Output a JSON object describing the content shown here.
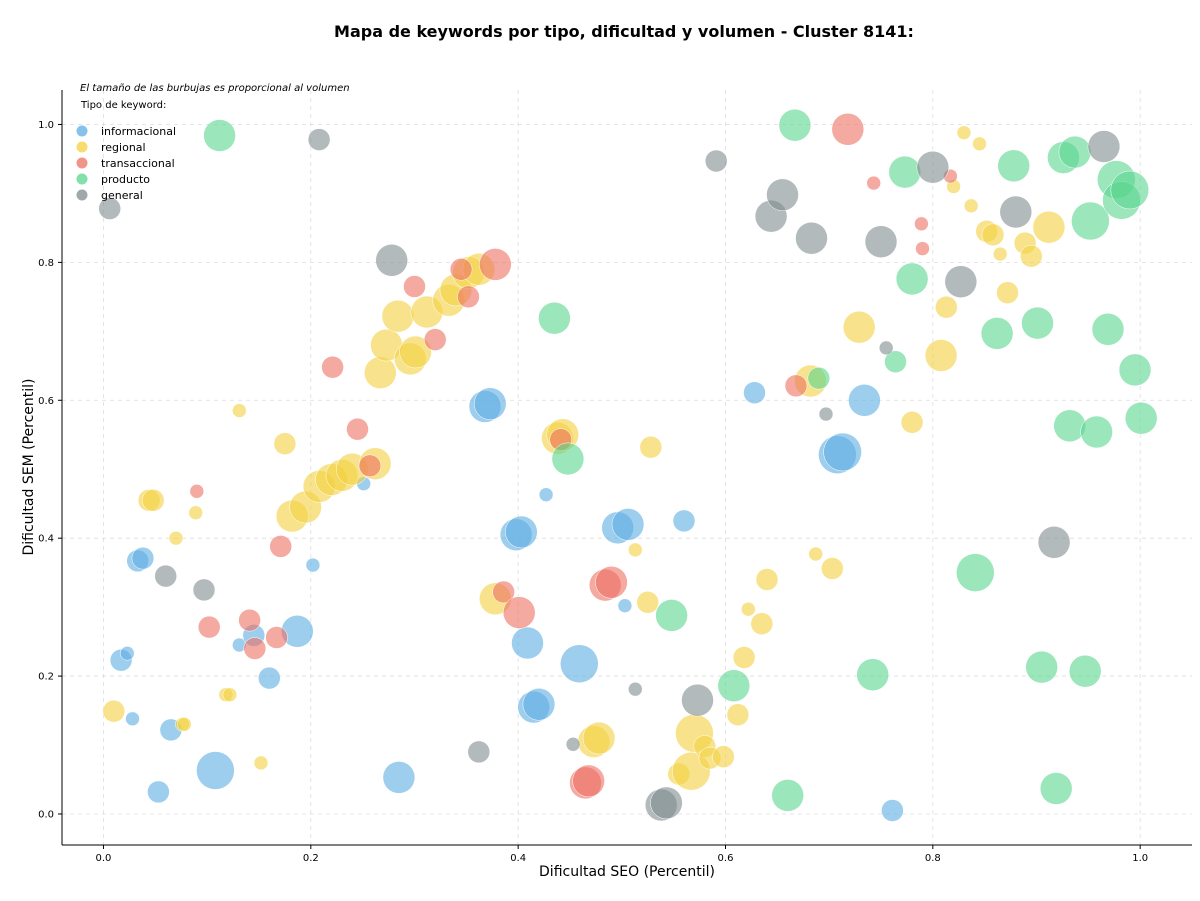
{
  "chart_data": {
    "type": "scatter",
    "title": "Mapa de keywords por tipo, dificultad y volumen - Cluster 8141:",
    "xlabel": "Dificultad SEO (Percentil)",
    "ylabel": "Dificultad SEM (Percentil)",
    "xlim": [
      -0.04,
      1.05
    ],
    "ylim": [
      -0.045,
      1.05
    ],
    "x_ticks": [
      "0.0",
      "0.2",
      "0.4",
      "0.6",
      "0.8",
      "1.0"
    ],
    "y_ticks": [
      "0.0",
      "0.2",
      "0.4",
      "0.6",
      "0.8",
      "1.0"
    ],
    "grid": true,
    "legend_position": "top-left",
    "annotation": "El tamaño de las burbujas es proporcional al volumen",
    "legend_title": "Tipo de keyword:",
    "series": [
      {
        "name": "informacional",
        "color": "#5dade2",
        "points": [
          [
            0.017,
            0.223,
            2
          ],
          [
            0.023,
            0.233,
            1
          ],
          [
            0.028,
            0.138,
            1
          ],
          [
            0.033,
            0.367,
            2
          ],
          [
            0.038,
            0.371,
            2
          ],
          [
            0.053,
            0.032,
            2
          ],
          [
            0.065,
            0.122,
            2
          ],
          [
            0.108,
            0.063,
            4
          ],
          [
            0.131,
            0.245,
            1
          ],
          [
            0.145,
            0.259,
            2
          ],
          [
            0.16,
            0.197,
            2
          ],
          [
            0.187,
            0.265,
            3
          ],
          [
            0.202,
            0.361,
            1
          ],
          [
            0.251,
            0.479,
            1
          ],
          [
            0.285,
            0.053,
            3
          ],
          [
            0.368,
            0.591,
            3
          ],
          [
            0.373,
            0.595,
            3
          ],
          [
            0.398,
            0.405,
            3
          ],
          [
            0.403,
            0.409,
            3
          ],
          [
            0.409,
            0.248,
            3
          ],
          [
            0.415,
            0.155,
            3
          ],
          [
            0.42,
            0.159,
            3
          ],
          [
            0.427,
            0.463,
            1
          ],
          [
            0.459,
            0.218,
            4
          ],
          [
            0.496,
            0.415,
            3
          ],
          [
            0.506,
            0.42,
            3
          ],
          [
            0.503,
            0.302,
            1
          ],
          [
            0.56,
            0.425,
            2
          ],
          [
            0.628,
            0.611,
            2
          ],
          [
            0.708,
            0.521,
            4
          ],
          [
            0.713,
            0.525,
            4
          ],
          [
            0.734,
            0.6,
            3
          ],
          [
            0.761,
            0.005,
            2
          ]
        ]
      },
      {
        "name": "regional",
        "color": "#f4d03f",
        "points": [
          [
            0.01,
            0.149,
            2
          ],
          [
            0.044,
            0.455,
            2
          ],
          [
            0.048,
            0.455,
            2
          ],
          [
            0.07,
            0.4,
            1
          ],
          [
            0.076,
            0.13,
            1
          ],
          [
            0.078,
            0.13,
            1
          ],
          [
            0.089,
            0.437,
            1
          ],
          [
            0.118,
            0.173,
            1
          ],
          [
            0.122,
            0.173,
            1
          ],
          [
            0.131,
            0.585,
            1
          ],
          [
            0.152,
            0.074,
            1
          ],
          [
            0.175,
            0.537,
            2
          ],
          [
            0.182,
            0.432,
            3
          ],
          [
            0.195,
            0.445,
            3
          ],
          [
            0.208,
            0.475,
            3
          ],
          [
            0.22,
            0.485,
            3
          ],
          [
            0.23,
            0.491,
            3
          ],
          [
            0.24,
            0.5,
            3
          ],
          [
            0.262,
            0.508,
            3
          ],
          [
            0.267,
            0.64,
            3
          ],
          [
            0.273,
            0.68,
            3
          ],
          [
            0.284,
            0.722,
            3
          ],
          [
            0.296,
            0.66,
            3
          ],
          [
            0.301,
            0.67,
            3
          ],
          [
            0.312,
            0.728,
            3
          ],
          [
            0.333,
            0.745,
            3
          ],
          [
            0.34,
            0.76,
            3
          ],
          [
            0.352,
            0.785,
            3
          ],
          [
            0.362,
            0.79,
            3
          ],
          [
            0.378,
            0.312,
            3
          ],
          [
            0.438,
            0.545,
            3
          ],
          [
            0.443,
            0.55,
            3
          ],
          [
            0.473,
            0.105,
            3
          ],
          [
            0.478,
            0.11,
            3
          ],
          [
            0.513,
            0.383,
            1
          ],
          [
            0.525,
            0.307,
            2
          ],
          [
            0.528,
            0.532,
            2
          ],
          [
            0.555,
            0.058,
            2
          ],
          [
            0.567,
            0.062,
            4
          ],
          [
            0.57,
            0.117,
            4
          ],
          [
            0.58,
            0.098,
            2
          ],
          [
            0.585,
            0.081,
            2
          ],
          [
            0.598,
            0.083,
            2
          ],
          [
            0.612,
            0.144,
            2
          ],
          [
            0.618,
            0.227,
            2
          ],
          [
            0.622,
            0.297,
            1
          ],
          [
            0.635,
            0.276,
            2
          ],
          [
            0.64,
            0.34,
            2
          ],
          [
            0.682,
            0.628,
            3
          ],
          [
            0.687,
            0.377,
            1
          ],
          [
            0.703,
            0.356,
            2
          ],
          [
            0.729,
            0.706,
            3
          ],
          [
            0.78,
            0.568,
            2
          ],
          [
            0.808,
            0.665,
            3
          ],
          [
            0.813,
            0.735,
            2
          ],
          [
            0.82,
            0.91,
            1
          ],
          [
            0.83,
            0.988,
            1
          ],
          [
            0.837,
            0.882,
            1
          ],
          [
            0.845,
            0.972,
            1
          ],
          [
            0.852,
            0.845,
            2
          ],
          [
            0.858,
            0.84,
            2
          ],
          [
            0.865,
            0.812,
            1
          ],
          [
            0.872,
            0.756,
            2
          ],
          [
            0.889,
            0.828,
            2
          ],
          [
            0.895,
            0.809,
            2
          ],
          [
            0.912,
            0.851,
            3
          ]
        ]
      },
      {
        "name": "transaccional",
        "color": "#ec7063",
        "points": [
          [
            0.09,
            0.468,
            1
          ],
          [
            0.102,
            0.271,
            2
          ],
          [
            0.141,
            0.281,
            2
          ],
          [
            0.146,
            0.24,
            2
          ],
          [
            0.167,
            0.256,
            2
          ],
          [
            0.171,
            0.388,
            2
          ],
          [
            0.221,
            0.648,
            2
          ],
          [
            0.245,
            0.558,
            2
          ],
          [
            0.257,
            0.505,
            2
          ],
          [
            0.3,
            0.765,
            2
          ],
          [
            0.32,
            0.688,
            2
          ],
          [
            0.345,
            0.79,
            2
          ],
          [
            0.352,
            0.75,
            2
          ],
          [
            0.378,
            0.797,
            3
          ],
          [
            0.386,
            0.322,
            2
          ],
          [
            0.401,
            0.292,
            3
          ],
          [
            0.441,
            0.543,
            2
          ],
          [
            0.465,
            0.045,
            3
          ],
          [
            0.468,
            0.048,
            3
          ],
          [
            0.484,
            0.332,
            3
          ],
          [
            0.49,
            0.336,
            3
          ],
          [
            0.668,
            0.621,
            2
          ],
          [
            0.718,
            0.993,
            3
          ],
          [
            0.743,
            0.915,
            1
          ],
          [
            0.789,
            0.856,
            1
          ],
          [
            0.79,
            0.82,
            1
          ],
          [
            0.817,
            0.925,
            1
          ]
        ]
      },
      {
        "name": "producto",
        "color": "#58d68d",
        "points": [
          [
            0.112,
            0.984,
            3
          ],
          [
            0.435,
            0.719,
            3
          ],
          [
            0.448,
            0.515,
            3
          ],
          [
            0.548,
            0.288,
            3
          ],
          [
            0.608,
            0.186,
            3
          ],
          [
            0.66,
            0.027,
            3
          ],
          [
            0.667,
            0.999,
            3
          ],
          [
            0.69,
            0.632,
            2
          ],
          [
            0.742,
            0.202,
            3
          ],
          [
            0.764,
            0.656,
            2
          ],
          [
            0.773,
            0.931,
            3
          ],
          [
            0.78,
            0.776,
            3
          ],
          [
            0.841,
            0.35,
            4
          ],
          [
            0.862,
            0.697,
            3
          ],
          [
            0.878,
            0.94,
            3
          ],
          [
            0.901,
            0.712,
            3
          ],
          [
            0.905,
            0.213,
            3
          ],
          [
            0.919,
            0.037,
            3
          ],
          [
            0.926,
            0.952,
            3
          ],
          [
            0.932,
            0.563,
            3
          ],
          [
            0.937,
            0.96,
            3
          ],
          [
            0.947,
            0.207,
            3
          ],
          [
            0.952,
            0.86,
            4
          ],
          [
            0.958,
            0.554,
            3
          ],
          [
            0.969,
            0.703,
            3
          ],
          [
            0.977,
            0.92,
            4
          ],
          [
            0.982,
            0.89,
            4
          ],
          [
            0.99,
            0.905,
            4
          ],
          [
            0.995,
            0.644,
            3
          ],
          [
            1.001,
            0.574,
            3
          ]
        ]
      },
      {
        "name": "general",
        "color": "#7f8c8d",
        "points": [
          [
            0.006,
            0.878,
            2
          ],
          [
            0.06,
            0.345,
            2
          ],
          [
            0.097,
            0.325,
            2
          ],
          [
            0.208,
            0.978,
            2
          ],
          [
            0.278,
            0.803,
            3
          ],
          [
            0.362,
            0.09,
            2
          ],
          [
            0.453,
            0.101,
            1
          ],
          [
            0.513,
            0.181,
            1
          ],
          [
            0.538,
            0.013,
            3
          ],
          [
            0.543,
            0.016,
            3
          ],
          [
            0.573,
            0.165,
            3
          ],
          [
            0.591,
            0.947,
            2
          ],
          [
            0.644,
            0.867,
            3
          ],
          [
            0.655,
            0.898,
            3
          ],
          [
            0.683,
            0.835,
            3
          ],
          [
            0.697,
            0.58,
            1
          ],
          [
            0.75,
            0.83,
            3
          ],
          [
            0.755,
            0.676,
            1
          ],
          [
            0.8,
            0.938,
            3
          ],
          [
            0.827,
            0.772,
            3
          ],
          [
            0.88,
            0.873,
            3
          ],
          [
            0.917,
            0.394,
            3
          ],
          [
            0.965,
            0.968,
            3
          ]
        ]
      }
    ]
  }
}
